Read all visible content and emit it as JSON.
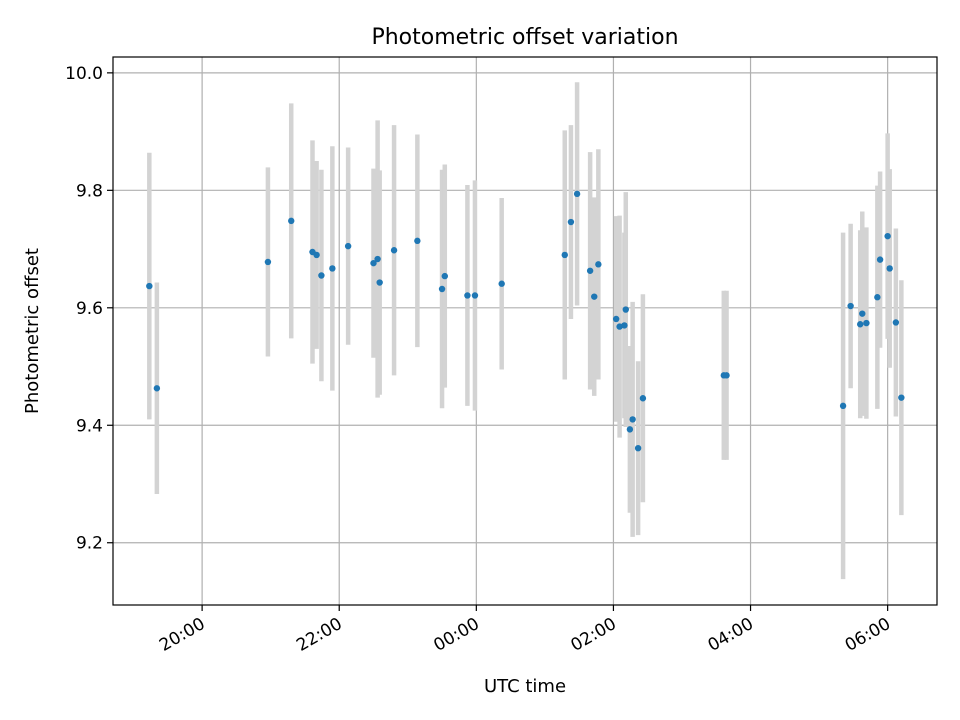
{
  "chart_data": {
    "type": "scatter",
    "title": "Photometric offset variation",
    "xlabel": "UTC time",
    "ylabel": "Photometric offset",
    "x_unit": "UTC clock time, hours past midnight (negative = previous evening)",
    "xlim": [
      -5.3,
      6.72
    ],
    "ylim": [
      9.094,
      10.027
    ],
    "grid": true,
    "x_ticks": [
      {
        "value": -4,
        "label": "20:00"
      },
      {
        "value": -2,
        "label": "22:00"
      },
      {
        "value": 0,
        "label": "00:00"
      },
      {
        "value": 2,
        "label": "02:00"
      },
      {
        "value": 4,
        "label": "04:00"
      },
      {
        "value": 6,
        "label": "06:00"
      }
    ],
    "y_ticks": [
      {
        "value": 9.2,
        "label": "9.2"
      },
      {
        "value": 9.4,
        "label": "9.4"
      },
      {
        "value": 9.6,
        "label": "9.6"
      },
      {
        "value": 9.8,
        "label": "9.8"
      },
      {
        "value": 10.0,
        "label": "10.0"
      }
    ],
    "colors": {
      "point": "#1f77b4",
      "errorbar": "#d3d3d3",
      "grid": "#b0b0b0",
      "axes": "#000000"
    },
    "points": [
      {
        "x": -4.77,
        "y": 9.637,
        "err": 0.227
      },
      {
        "x": -4.66,
        "y": 9.463,
        "err": 0.18
      },
      {
        "x": -3.04,
        "y": 9.678,
        "err": 0.161
      },
      {
        "x": -2.7,
        "y": 9.748,
        "err": 0.2
      },
      {
        "x": -2.39,
        "y": 9.695,
        "err": 0.19
      },
      {
        "x": -2.33,
        "y": 9.69,
        "err": 0.16
      },
      {
        "x": -2.26,
        "y": 9.655,
        "err": 0.18
      },
      {
        "x": -2.1,
        "y": 9.667,
        "err": 0.208
      },
      {
        "x": -1.87,
        "y": 9.705,
        "err": 0.168
      },
      {
        "x": -1.5,
        "y": 9.676,
        "err": 0.161
      },
      {
        "x": -1.44,
        "y": 9.683,
        "err": 0.236
      },
      {
        "x": -1.41,
        "y": 9.643,
        "err": 0.191
      },
      {
        "x": -1.2,
        "y": 9.698,
        "err": 0.213
      },
      {
        "x": -0.86,
        "y": 9.714,
        "err": 0.181
      },
      {
        "x": -0.5,
        "y": 9.632,
        "err": 0.203
      },
      {
        "x": -0.46,
        "y": 9.654,
        "err": 0.19
      },
      {
        "x": -0.13,
        "y": 9.621,
        "err": 0.188
      },
      {
        "x": -0.02,
        "y": 9.621,
        "err": 0.196
      },
      {
        "x": 0.37,
        "y": 9.641,
        "err": 0.146
      },
      {
        "x": 1.29,
        "y": 9.69,
        "err": 0.212
      },
      {
        "x": 1.38,
        "y": 9.746,
        "err": 0.165
      },
      {
        "x": 1.47,
        "y": 9.794,
        "err": 0.19
      },
      {
        "x": 1.66,
        "y": 9.663,
        "err": 0.202
      },
      {
        "x": 1.72,
        "y": 9.619,
        "err": 0.169
      },
      {
        "x": 1.78,
        "y": 9.674,
        "err": 0.196
      },
      {
        "x": 2.04,
        "y": 9.581,
        "err": 0.175
      },
      {
        "x": 2.09,
        "y": 9.568,
        "err": 0.189
      },
      {
        "x": 2.16,
        "y": 9.57,
        "err": 0.158
      },
      {
        "x": 2.18,
        "y": 9.597,
        "err": 0.2
      },
      {
        "x": 2.24,
        "y": 9.393,
        "err": 0.142
      },
      {
        "x": 2.28,
        "y": 9.41,
        "err": 0.2
      },
      {
        "x": 2.36,
        "y": 9.361,
        "err": 0.148
      },
      {
        "x": 2.43,
        "y": 9.446,
        "err": 0.177
      },
      {
        "x": 3.61,
        "y": 9.485,
        "err": 0.144
      },
      {
        "x": 3.65,
        "y": 9.485,
        "err": 0.144
      },
      {
        "x": 5.35,
        "y": 9.433,
        "err": 0.295
      },
      {
        "x": 5.46,
        "y": 9.603,
        "err": 0.14
      },
      {
        "x": 5.6,
        "y": 9.572,
        "err": 0.16
      },
      {
        "x": 5.63,
        "y": 9.59,
        "err": 0.174
      },
      {
        "x": 5.69,
        "y": 9.574,
        "err": 0.163
      },
      {
        "x": 5.85,
        "y": 9.618,
        "err": 0.19
      },
      {
        "x": 5.89,
        "y": 9.682,
        "err": 0.15
      },
      {
        "x": 6.0,
        "y": 9.722,
        "err": 0.175
      },
      {
        "x": 6.03,
        "y": 9.667,
        "err": 0.169
      },
      {
        "x": 6.12,
        "y": 9.575,
        "err": 0.16
      },
      {
        "x": 6.2,
        "y": 9.447,
        "err": 0.2
      }
    ]
  }
}
